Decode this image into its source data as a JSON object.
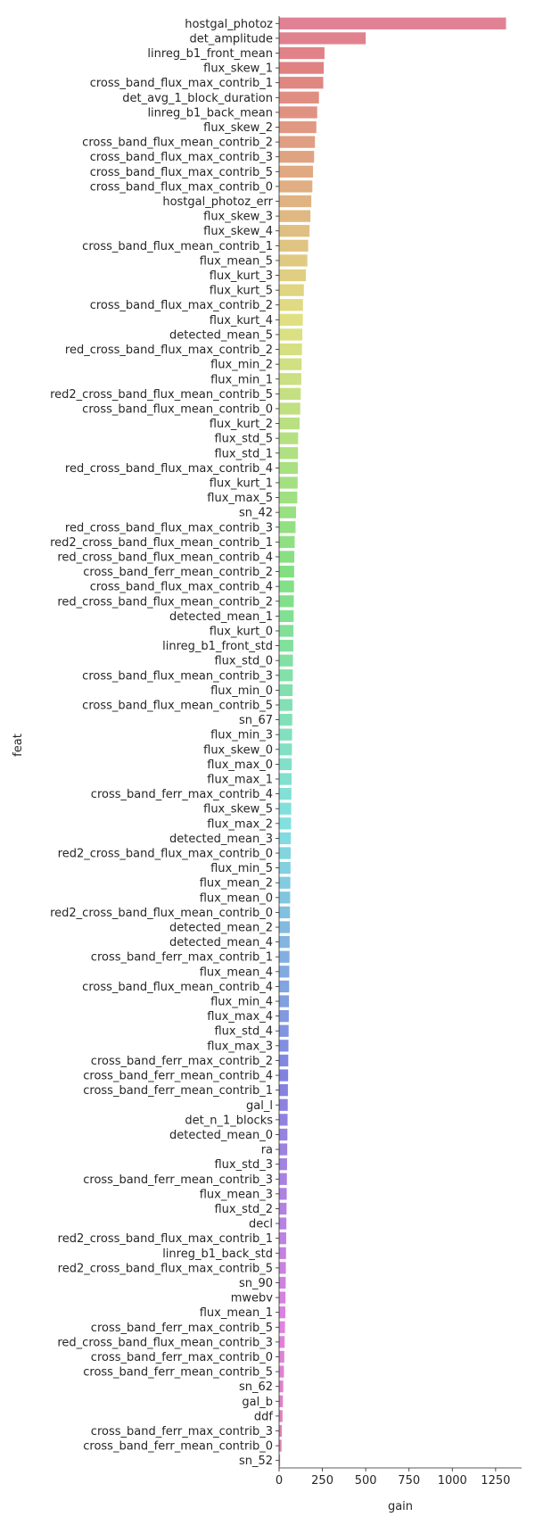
{
  "chart_data": {
    "type": "bar",
    "orientation": "horizontal",
    "xlabel": "gain",
    "ylabel": "feat",
    "xlim": [
      0,
      1400
    ],
    "xticks": [
      0,
      250,
      500,
      750,
      1000,
      1250
    ],
    "grid": false,
    "categories": [
      "hostgal_photoz",
      "det_amplitude",
      "linreg_b1_front_mean",
      "flux_skew_1",
      "cross_band_flux_max_contrib_1",
      "det_avg_1_block_duration",
      "linreg_b1_back_mean",
      "flux_skew_2",
      "cross_band_flux_mean_contrib_2",
      "cross_band_flux_max_contrib_3",
      "cross_band_flux_max_contrib_5",
      "cross_band_flux_max_contrib_0",
      "hostgal_photoz_err",
      "flux_skew_3",
      "flux_skew_4",
      "cross_band_flux_mean_contrib_1",
      "flux_mean_5",
      "flux_kurt_3",
      "flux_kurt_5",
      "cross_band_flux_max_contrib_2",
      "flux_kurt_4",
      "detected_mean_5",
      "red_cross_band_flux_max_contrib_2",
      "flux_min_2",
      "flux_min_1",
      "red2_cross_band_flux_mean_contrib_5",
      "cross_band_flux_mean_contrib_0",
      "flux_kurt_2",
      "flux_std_5",
      "flux_std_1",
      "red_cross_band_flux_max_contrib_4",
      "flux_kurt_1",
      "flux_max_5",
      "sn_42",
      "red_cross_band_flux_max_contrib_3",
      "red2_cross_band_flux_mean_contrib_1",
      "red_cross_band_flux_mean_contrib_4",
      "cross_band_ferr_mean_contrib_2",
      "cross_band_flux_max_contrib_4",
      "red_cross_band_flux_mean_contrib_2",
      "detected_mean_1",
      "flux_kurt_0",
      "linreg_b1_front_std",
      "flux_std_0",
      "cross_band_flux_mean_contrib_3",
      "flux_min_0",
      "cross_band_flux_mean_contrib_5",
      "sn_67",
      "flux_min_3",
      "flux_skew_0",
      "flux_max_0",
      "flux_max_1",
      "cross_band_ferr_max_contrib_4",
      "flux_skew_5",
      "flux_max_2",
      "detected_mean_3",
      "red2_cross_band_flux_max_contrib_0",
      "flux_min_5",
      "flux_mean_2",
      "flux_mean_0",
      "red2_cross_band_flux_mean_contrib_0",
      "detected_mean_2",
      "detected_mean_4",
      "cross_band_ferr_max_contrib_1",
      "flux_mean_4",
      "cross_band_flux_mean_contrib_4",
      "flux_min_4",
      "flux_max_4",
      "flux_std_4",
      "flux_max_3",
      "cross_band_ferr_max_contrib_2",
      "cross_band_ferr_mean_contrib_4",
      "cross_band_ferr_mean_contrib_1",
      "gal_l",
      "det_n_1_blocks",
      "detected_mean_0",
      "ra",
      "flux_std_3",
      "cross_band_ferr_mean_contrib_3",
      "flux_mean_3",
      "flux_std_2",
      "decl",
      "red2_cross_band_flux_max_contrib_1",
      "linreg_b1_back_std",
      "red2_cross_band_flux_max_contrib_5",
      "sn_90",
      "mwebv",
      "flux_mean_1",
      "cross_band_ferr_max_contrib_5",
      "red_cross_band_flux_mean_contrib_3",
      "cross_band_ferr_max_contrib_0",
      "cross_band_ferr_mean_contrib_5",
      "sn_62",
      "gal_b",
      "ddf",
      "cross_band_ferr_max_contrib_3",
      "cross_band_ferr_mean_contrib_0",
      "sn_52"
    ],
    "values": [
      1310,
      500,
      262,
      258,
      255,
      230,
      220,
      215,
      207,
      202,
      196,
      192,
      186,
      181,
      176,
      168,
      163,
      155,
      143,
      138,
      137,
      134,
      132,
      130,
      128,
      125,
      122,
      119,
      110,
      109,
      108,
      107,
      105,
      98,
      95,
      90,
      88,
      87,
      86,
      85,
      84,
      83,
      82,
      80,
      79,
      78,
      77,
      76,
      75,
      74,
      73,
      72,
      71,
      70,
      69,
      68,
      67,
      66,
      65,
      64,
      63,
      62,
      61,
      60,
      59,
      58,
      57,
      56,
      55,
      54,
      53,
      52,
      51,
      50,
      49,
      48,
      47,
      46,
      45,
      44,
      43,
      42,
      41,
      40,
      39,
      38,
      37,
      36,
      34,
      32,
      30,
      28,
      24,
      22,
      20,
      16,
      14,
      6
    ]
  }
}
